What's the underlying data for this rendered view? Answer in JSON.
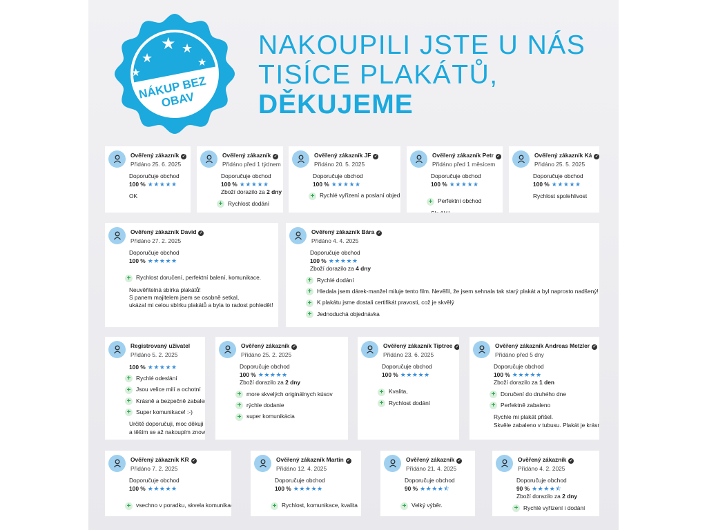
{
  "badge": {
    "text_line1": "NÁKUP BEZ",
    "text_line2": "OBAV",
    "color": "#1ba9de"
  },
  "headline": {
    "line1": "NAKOUPILI JSTE U NÁS",
    "line2": "TISÍCE PLAKÁTŮ,",
    "line3": "DĚKUJEME",
    "color": "#1ba9de"
  },
  "colors": {
    "star": "#3a8fd9",
    "avatar": "#9fd0f0",
    "plus": "#2fa84f"
  },
  "reviews": [
    {
      "name": "Ověřený zákazník",
      "verified": true,
      "date": "Přidáno 25. 6. 2025",
      "recommend": "Doporučuje obchod",
      "percent": "100 %",
      "rating": 5,
      "pros": [],
      "text": [
        "OK"
      ]
    },
    {
      "name": "Ověřený zákazník",
      "verified": true,
      "date": "Přidáno před 1 týdnem",
      "recommend": "Doporučuje obchod",
      "percent": "100 %",
      "rating": 5,
      "delivery_prefix": "Zboží dorazilo za",
      "delivery_value": "2 dny",
      "pros": [
        "Rychlost dodání"
      ],
      "text": []
    },
    {
      "name": "Ověřený zákazník JF",
      "verified": true,
      "date": "Přidáno 20. 5. 2025",
      "recommend": "Doporučuje obchod",
      "percent": "100 %",
      "rating": 5,
      "pros": [
        "Rychlé vyřízení a poslaní objednávky"
      ],
      "text": []
    },
    {
      "name": "Ověřený zákazník Petr",
      "verified": true,
      "date": "Přidáno před 1 měsícem",
      "recommend": "Doporučuje obchod",
      "percent": "100 %",
      "rating": 5,
      "pros": [
        "Perfektní obchod"
      ],
      "text": [
        "Skvělé!"
      ]
    },
    {
      "name": "Ověřený zákazník Ká",
      "verified": true,
      "date": "Přidáno 25. 5. 2025",
      "recommend": "Doporučuje obchod",
      "percent": "100 %",
      "rating": 5,
      "pros": [],
      "text": [
        "Rychlost spolehlivost"
      ]
    },
    {
      "name": "Ověřený zákazník David",
      "verified": true,
      "date": "Přidáno 27. 2. 2025",
      "recommend": "Doporučuje obchod",
      "percent": "100 %",
      "rating": 5,
      "pros": [
        "Rychlost doručení, perfektní balení, komunikace."
      ],
      "text": [
        "Neuvěřitelná sbírka plakátů!",
        "S panem majitelem jsem se osobně setkal,",
        "ukázal mi celou sbírku plakátů a byla to radost pohledět!"
      ]
    },
    {
      "name": "Ověřený zákazník Bára",
      "verified": true,
      "date": "Přidáno 4. 4. 2025",
      "recommend": "Doporučuje obchod",
      "percent": "100 %",
      "rating": 5,
      "delivery_prefix": "Zboží dorazilo za",
      "delivery_value": "4 dny",
      "pros": [
        "Rychlé dodání",
        "Hledala jsem dárek-manžel miluje tento film. Nevěřil, že jsem sehnala tak starý plakát a byl naprosto nadšený!",
        "K plakátu jsme dostali certifikát pravosti, což je skvělý",
        "Jednoduchá objednávka"
      ],
      "text": []
    },
    {
      "name": "Registrovaný uživatel",
      "verified": false,
      "date": "Přidáno 5. 2. 2025",
      "percent": "100 %",
      "rating": 5,
      "pros": [
        "Rychlé odeslání",
        "Jsou velice milí a ochotní",
        "Krásně a bezpečně zabaleno",
        "Super komunikace! :-)"
      ],
      "text": [
        "Určitě doporučuji, moc děkuji",
        "a těším se až nakoupím znovu!:-)"
      ]
    },
    {
      "name": "Ověřený zákazník",
      "verified": true,
      "date": "Přidáno 25. 2. 2025",
      "recommend": "Doporučuje obchod",
      "percent": "100 %",
      "rating": 5,
      "delivery_prefix": "Zboží dorazilo za",
      "delivery_value": "2 dny",
      "pros": [
        "more skvelých originálnych kúsov",
        "rýchle dodanie",
        "super komunikácia"
      ],
      "text": []
    },
    {
      "name": "Ověřený zákazník Tiptree",
      "verified": true,
      "date": "Přidáno 23. 6. 2025",
      "recommend": "Doporučuje obchod",
      "percent": "100 %",
      "rating": 5,
      "pros": [
        "Kvalita,",
        "Rychlost dodání"
      ],
      "text": []
    },
    {
      "name": "Ověřený zákazník Andreas Metzler",
      "verified": true,
      "date": "Přidáno před 5 dny",
      "recommend": "Doporučuje obchod",
      "percent": "100 %",
      "rating": 5,
      "delivery_prefix": "Zboží dorazilo za",
      "delivery_value": "1 den",
      "pros": [
        "Doručení do druhého dne",
        "Perfektně zabaleno"
      ],
      "text": [
        "Rychle mi plakát přišel.",
        "Skvěle zabaleno v tubusu. Plakát je krásnej!"
      ]
    },
    {
      "name": "Ověřený zákazník KR",
      "verified": true,
      "date": "Přidáno 7. 2. 2025",
      "recommend": "Doporučuje obchod",
      "percent": "100 %",
      "rating": 5,
      "pros": [
        "vsechno v poradku, skvela komunikace"
      ],
      "text": []
    },
    {
      "name": "Ověřený zákazník Martin",
      "verified": true,
      "date": "Přidáno 12. 4. 2025",
      "recommend": "Doporučuje obchod",
      "percent": "100 %",
      "rating": 5,
      "pros": [
        "Rychlost, komunikace, kvalita"
      ],
      "text": []
    },
    {
      "name": "Ověřený zákazník",
      "verified": true,
      "date": "Přidáno 21. 4. 2025",
      "recommend": "Doporučuje obchod",
      "percent": "90 %",
      "rating": 4.5,
      "pros": [
        "Velký výběr."
      ],
      "text": []
    },
    {
      "name": "Ověřený zákazník",
      "verified": true,
      "date": "Přidáno 4. 2. 2025",
      "recommend": "Doporučuje obchod",
      "percent": "90 %",
      "rating": 4.5,
      "delivery_prefix": "Zboží dorazilo za",
      "delivery_value": "2 dny",
      "pros": [
        "Rychlé vyřízení i dodání"
      ],
      "text": []
    }
  ]
}
